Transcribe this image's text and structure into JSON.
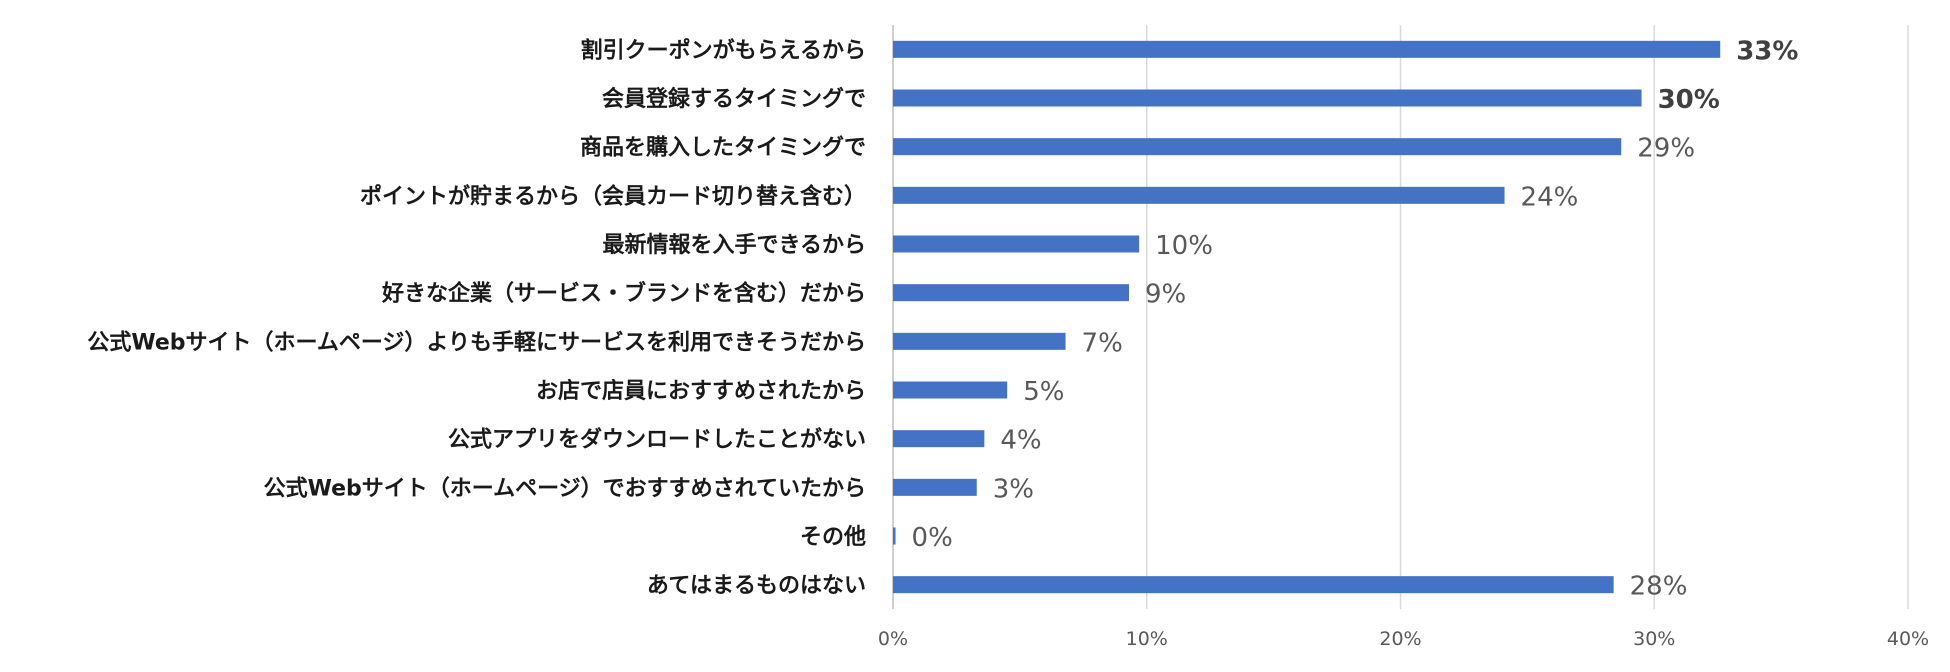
{
  "chart_data": {
    "type": "bar",
    "orientation": "horizontal",
    "categories": [
      "割引クーポンがもらえるから",
      "会員登録するタイミングで",
      "商品を購入したタイミングで",
      "ポイントが貯まるから（会員カード切り替え含む）",
      "最新情報を入手できるから",
      "好きな企業（サービス・ブランドを含む）だから",
      "公式Webサイト（ホームページ）よりも手軽にサービスを利用できそうだから",
      "お店で店員におすすめされたから",
      "公式アプリをダウンロードしたことがない",
      "公式Webサイト（ホームページ）でおすすめされていたから",
      "その他",
      "あてはまるものはない"
    ],
    "values": [
      32.6,
      29.5,
      28.7,
      24.1,
      9.7,
      9.3,
      6.8,
      4.5,
      3.6,
      3.3,
      0.1,
      28.4
    ],
    "value_labels": [
      "33%",
      "30%",
      "29%",
      "24%",
      "10%",
      "9%",
      "7%",
      "5%",
      "4%",
      "3%",
      "0%",
      "28%"
    ],
    "bold_labels": [
      true,
      true,
      false,
      false,
      false,
      false,
      false,
      false,
      false,
      false,
      false,
      false
    ],
    "xlim": [
      0,
      40
    ],
    "xticks": [
      0,
      10,
      20,
      30,
      40
    ],
    "xtick_labels": [
      "0%",
      "10%",
      "20%",
      "30%",
      "40%"
    ],
    "grid": "vertical",
    "bar_color": "#4472c4",
    "title": "",
    "xlabel": "",
    "ylabel": ""
  }
}
